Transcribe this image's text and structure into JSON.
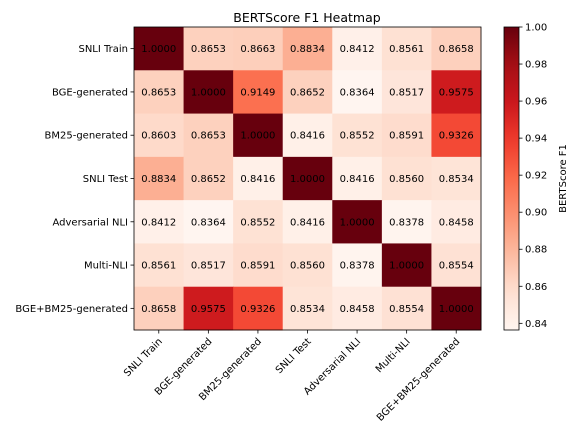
{
  "chart_data": {
    "type": "heatmap",
    "title": "BERTScore F1 Heatmap",
    "row_labels": [
      "SNLI Train",
      "BGE-generated",
      "BM25-generated",
      "SNLI Test",
      "Adversarial NLI",
      "Multi-NLI",
      "BGE+BM25-generated"
    ],
    "col_labels": [
      "SNLI Train",
      "BGE-generated",
      "BM25-generated",
      "SNLI Test",
      "Adversarial NLI",
      "Multi-NLI",
      "BGE+BM25-generated"
    ],
    "values": [
      [
        1.0,
        0.8653,
        0.8663,
        0.8834,
        0.8412,
        0.8561,
        0.8658
      ],
      [
        0.8653,
        1.0,
        0.9149,
        0.8652,
        0.8364,
        0.8517,
        0.9575
      ],
      [
        0.8603,
        0.8653,
        1.0,
        0.8416,
        0.8552,
        0.8591,
        0.9326
      ],
      [
        0.8834,
        0.8652,
        0.8416,
        1.0,
        0.8416,
        0.856,
        0.8534
      ],
      [
        0.8412,
        0.8364,
        0.8552,
        0.8416,
        1.0,
        0.8378,
        0.8458
      ],
      [
        0.8561,
        0.8517,
        0.8591,
        0.856,
        0.8378,
        1.0,
        0.8554
      ],
      [
        0.8658,
        0.9575,
        0.9326,
        0.8534,
        0.8458,
        0.8554,
        1.0
      ]
    ],
    "colorbar": {
      "label": "BERTScore F1",
      "colormap": "Reds",
      "vmin": 0.8364,
      "vmax": 1.0,
      "ticks": [
        "0.84",
        "0.86",
        "0.88",
        "0.90",
        "0.92",
        "0.94",
        "0.96",
        "0.98",
        "1.00"
      ]
    },
    "grid": false
  }
}
